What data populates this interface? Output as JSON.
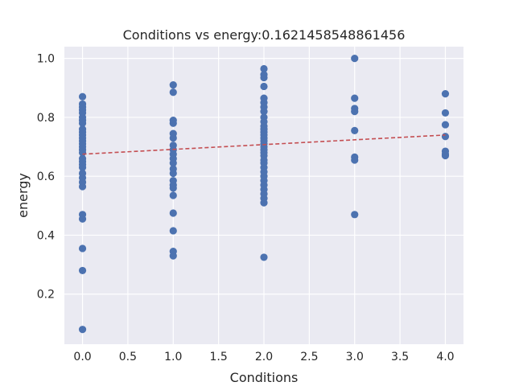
{
  "chart_data": {
    "type": "scatter",
    "title": "Conditions vs energy:0.1621458548861456",
    "xlabel": "Conditions",
    "ylabel": "energy",
    "xlim": [
      -0.2,
      4.2
    ],
    "ylim": [
      0.03,
      1.04
    ],
    "xticks": [
      0.0,
      0.5,
      1.0,
      1.5,
      2.0,
      2.5,
      3.0,
      3.5,
      4.0
    ],
    "yticks": [
      0.2,
      0.4,
      0.6,
      0.8,
      1.0
    ],
    "grid": true,
    "background": "#eaeaf2",
    "point_color": "#4c72b0",
    "trend_color": "#c44e52",
    "trend_style": "dashed",
    "trend_line": {
      "x": [
        0,
        4
      ],
      "y": [
        0.675,
        0.74
      ]
    },
    "series": [
      {
        "points": [
          [
            0,
            0.87
          ],
          [
            0,
            0.845
          ],
          [
            0,
            0.835
          ],
          [
            0,
            0.825
          ],
          [
            0,
            0.815
          ],
          [
            0,
            0.8
          ],
          [
            0,
            0.79
          ],
          [
            0,
            0.78
          ],
          [
            0,
            0.76
          ],
          [
            0,
            0.75
          ],
          [
            0,
            0.74
          ],
          [
            0,
            0.73
          ],
          [
            0,
            0.72
          ],
          [
            0,
            0.71
          ],
          [
            0,
            0.7
          ],
          [
            0,
            0.69
          ],
          [
            0,
            0.68
          ],
          [
            0,
            0.66
          ],
          [
            0,
            0.65
          ],
          [
            0,
            0.64
          ],
          [
            0,
            0.63
          ],
          [
            0,
            0.61
          ],
          [
            0,
            0.595
          ],
          [
            0,
            0.58
          ],
          [
            0,
            0.565
          ],
          [
            0,
            0.47
          ],
          [
            0,
            0.455
          ],
          [
            0,
            0.355
          ],
          [
            0,
            0.28
          ],
          [
            0,
            0.08
          ],
          [
            1,
            0.91
          ],
          [
            1,
            0.885
          ],
          [
            1,
            0.79
          ],
          [
            1,
            0.78
          ],
          [
            1,
            0.745
          ],
          [
            1,
            0.73
          ],
          [
            1,
            0.705
          ],
          [
            1,
            0.69
          ],
          [
            1,
            0.675
          ],
          [
            1,
            0.66
          ],
          [
            1,
            0.645
          ],
          [
            1,
            0.625
          ],
          [
            1,
            0.61
          ],
          [
            1,
            0.585
          ],
          [
            1,
            0.57
          ],
          [
            1,
            0.56
          ],
          [
            1,
            0.535
          ],
          [
            1,
            0.475
          ],
          [
            1,
            0.415
          ],
          [
            1,
            0.345
          ],
          [
            1,
            0.33
          ],
          [
            2,
            0.965
          ],
          [
            2,
            0.945
          ],
          [
            2,
            0.935
          ],
          [
            2,
            0.905
          ],
          [
            2,
            0.865
          ],
          [
            2,
            0.85
          ],
          [
            2,
            0.835
          ],
          [
            2,
            0.82
          ],
          [
            2,
            0.8
          ],
          [
            2,
            0.785
          ],
          [
            2,
            0.77
          ],
          [
            2,
            0.76
          ],
          [
            2,
            0.75
          ],
          [
            2,
            0.74
          ],
          [
            2,
            0.73
          ],
          [
            2,
            0.72
          ],
          [
            2,
            0.71
          ],
          [
            2,
            0.7
          ],
          [
            2,
            0.69
          ],
          [
            2,
            0.68
          ],
          [
            2,
            0.67
          ],
          [
            2,
            0.655
          ],
          [
            2,
            0.645
          ],
          [
            2,
            0.63
          ],
          [
            2,
            0.615
          ],
          [
            2,
            0.6
          ],
          [
            2,
            0.585
          ],
          [
            2,
            0.57
          ],
          [
            2,
            0.555
          ],
          [
            2,
            0.54
          ],
          [
            2,
            0.525
          ],
          [
            2,
            0.51
          ],
          [
            2,
            0.325
          ],
          [
            3,
            1.0
          ],
          [
            3,
            0.865
          ],
          [
            3,
            0.83
          ],
          [
            3,
            0.82
          ],
          [
            3,
            0.755
          ],
          [
            3,
            0.665
          ],
          [
            3,
            0.655
          ],
          [
            3,
            0.47
          ],
          [
            4,
            0.88
          ],
          [
            4,
            0.815
          ],
          [
            4,
            0.775
          ],
          [
            4,
            0.735
          ],
          [
            4,
            0.685
          ],
          [
            4,
            0.675
          ],
          [
            4,
            0.67
          ]
        ]
      }
    ]
  }
}
